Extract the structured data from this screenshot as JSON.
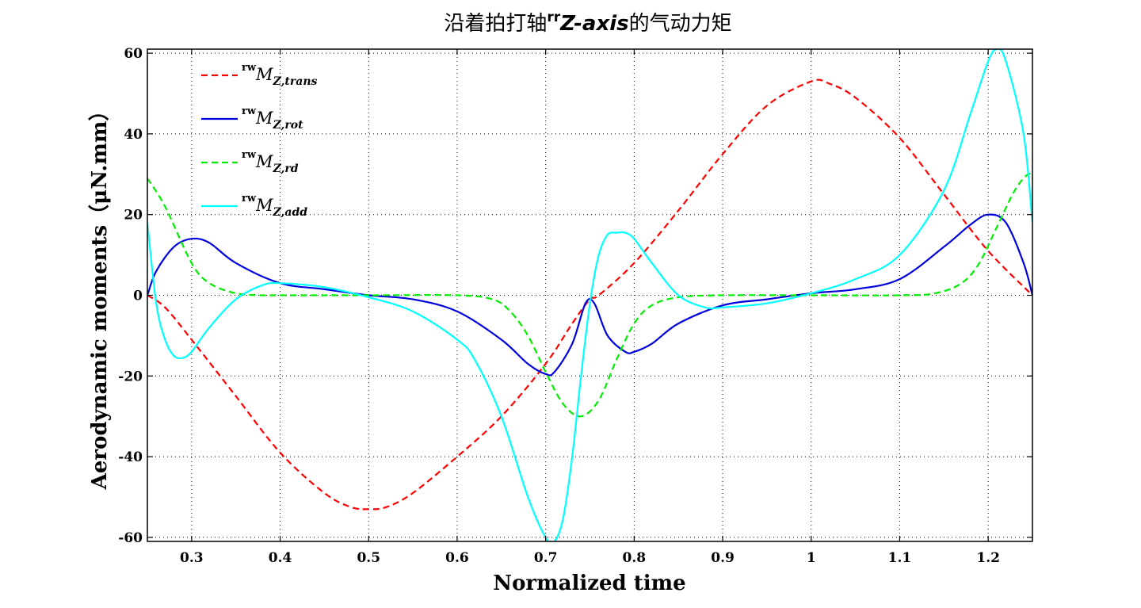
{
  "chart_data": {
    "type": "line",
    "title": {
      "prefix": "沿着拍打轴",
      "sup": "rr",
      "axis": "Z-axis",
      "suffix": "的气动力矩"
    },
    "xlabel": "Normalized time",
    "ylabel": "Aerodynamic moments（μN.mm）",
    "xlim": [
      0.25,
      1.25
    ],
    "ylim": [
      -61,
      61
    ],
    "xticks": [
      0.3,
      0.4,
      0.5,
      0.6,
      0.7,
      0.8,
      0.9,
      1.0,
      1.1,
      1.2
    ],
    "xtick_labels": [
      "0.3",
      "0.4",
      "0.5",
      "0.6",
      "0.7",
      "0.8",
      "0.9",
      "1",
      "1.1",
      "1.2"
    ],
    "yticks": [
      -60,
      -40,
      -20,
      0,
      20,
      40,
      60
    ],
    "ytick_labels": [
      "-60",
      "-40",
      "-20",
      "0",
      "20",
      "40",
      "60"
    ],
    "grid": true,
    "legend_position": "top-left",
    "series": [
      {
        "name": "rwM_Z,trans",
        "legend": {
          "sup": "rw",
          "main": "M",
          "sub": "Z,trans"
        },
        "color": "#ff0000",
        "dash": "dashed",
        "x": [
          0.25,
          0.27,
          0.3,
          0.35,
          0.4,
          0.45,
          0.48,
          0.5,
          0.52,
          0.55,
          0.6,
          0.65,
          0.7,
          0.73,
          0.75,
          0.76,
          0.8,
          0.85,
          0.9,
          0.95,
          1.0,
          1.02,
          1.05,
          1.1,
          1.15,
          1.2,
          1.25
        ],
        "y": [
          0,
          -3,
          -11,
          -25,
          -39,
          -49,
          -52.5,
          -53,
          -52.5,
          -49,
          -40,
          -30,
          -17,
          -7,
          -1,
          0,
          8,
          21,
          35,
          47,
          53,
          52.5,
          49,
          39,
          25,
          11,
          0
        ]
      },
      {
        "name": "rwM_Z,rot",
        "legend": {
          "sup": "rw",
          "main": "M",
          "sub": "Z,rot"
        },
        "color": "#0000dd",
        "dash": "solid",
        "x": [
          0.25,
          0.26,
          0.28,
          0.3,
          0.32,
          0.35,
          0.4,
          0.45,
          0.5,
          0.55,
          0.6,
          0.65,
          0.68,
          0.7,
          0.71,
          0.73,
          0.745,
          0.755,
          0.77,
          0.79,
          0.8,
          0.82,
          0.85,
          0.9,
          0.95,
          1.0,
          1.05,
          1.1,
          1.15,
          1.18,
          1.2,
          1.22,
          1.24,
          1.25
        ],
        "y": [
          0,
          6,
          12,
          14,
          13,
          8,
          3,
          1.5,
          0,
          -1,
          -4,
          -11,
          -17,
          -19.5,
          -19,
          -12,
          -2,
          -2,
          -10,
          -14,
          -14,
          -12,
          -7,
          -2.5,
          -1,
          0.5,
          1.5,
          4,
          12,
          17.5,
          20,
          18,
          8,
          0
        ]
      },
      {
        "name": "rwM_Z,rd",
        "legend": {
          "sup": "rw",
          "main": "M",
          "sub": "Z,rd"
        },
        "color": "#00ee00",
        "dash": "dashed",
        "x": [
          0.25,
          0.27,
          0.3,
          0.32,
          0.35,
          0.38,
          0.4,
          0.5,
          0.6,
          0.64,
          0.66,
          0.68,
          0.7,
          0.72,
          0.74,
          0.76,
          0.78,
          0.8,
          0.82,
          0.85,
          0.9,
          1.0,
          1.1,
          1.14,
          1.17,
          1.19,
          1.21,
          1.23,
          1.245,
          1.25
        ],
        "y": [
          29,
          22,
          8,
          3,
          0.5,
          0,
          0,
          0,
          0,
          -1,
          -4,
          -10,
          -19,
          -27,
          -30,
          -26,
          -16,
          -7,
          -2.5,
          -0.5,
          0,
          0,
          0,
          0.5,
          3,
          8,
          17,
          26,
          30,
          29
        ]
      },
      {
        "name": "rwM_Z,add",
        "legend": {
          "sup": "rw",
          "main": "M",
          "sub": "Z,add"
        },
        "color": "#00ffff",
        "dash": "solid",
        "x": [
          0.25,
          0.26,
          0.27,
          0.28,
          0.29,
          0.3,
          0.32,
          0.35,
          0.38,
          0.4,
          0.45,
          0.5,
          0.55,
          0.6,
          0.62,
          0.65,
          0.68,
          0.7,
          0.71,
          0.72,
          0.73,
          0.74,
          0.75,
          0.76,
          0.77,
          0.78,
          0.79,
          0.8,
          0.82,
          0.85,
          0.88,
          0.9,
          0.95,
          1.0,
          1.05,
          1.1,
          1.15,
          1.18,
          1.2,
          1.21,
          1.22,
          1.24,
          1.25
        ],
        "y": [
          18,
          -2,
          -11,
          -15,
          -15.5,
          -14,
          -8,
          -1,
          2.5,
          3,
          2,
          -0.5,
          -4,
          -11,
          -16,
          -30,
          -50,
          -60,
          -61,
          -55,
          -40,
          -20,
          -2,
          10,
          15,
          15.5,
          15.5,
          14,
          8,
          0,
          -3,
          -3,
          -2,
          0.5,
          4,
          10,
          26,
          45,
          58,
          61,
          58,
          40,
          18
        ]
      }
    ]
  }
}
